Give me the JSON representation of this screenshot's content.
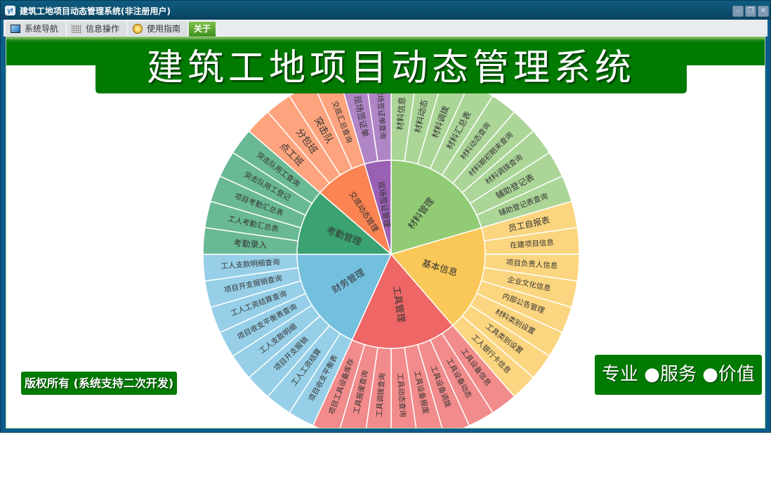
{
  "window": {
    "title": "建筑工地项目动态管理系统(非注册用户)",
    "logo_text": "yf",
    "controls": [
      "minimize-icon",
      "restore-icon",
      "close-icon"
    ]
  },
  "toolbar": {
    "tabs": [
      {
        "label": "系统导航",
        "icon": "monitor-icon"
      },
      {
        "label": "信息操作",
        "icon": "grid-icon"
      },
      {
        "label": "使用指南",
        "icon": "help-icon"
      },
      {
        "label": "关于",
        "active": true
      }
    ]
  },
  "main": {
    "banner_title": "建筑工地项目动态管理系统",
    "copyright": "版权所有 (系统支持二次开发)",
    "slogan": "专业 ●服务 ●价值"
  },
  "colors": {
    "accent_green": "#007a00",
    "titlebar": "#0a4a68"
  },
  "chart_data": {
    "type": "sunburst",
    "children": [
      {
        "name": "材料管理",
        "color": "#91cc75",
        "leaf_color": "#acd598",
        "children": [
          "材料信息",
          "材料动态",
          "材料调拨",
          "材料汇总表",
          "材料动态查询",
          "材料期初期末查询",
          "材料调拨查询",
          "辅助登记表",
          "辅助登记表查询"
        ]
      },
      {
        "name": "基本信息",
        "color": "#fac858",
        "leaf_color": "#fbd57f",
        "children": [
          "员工自报表",
          "在建项目信息",
          "项目负责人信息",
          "企业文化信息",
          "内部公告管理",
          "材料类别设置",
          "工具类别设置",
          "工人银行卡信息"
        ]
      },
      {
        "name": "工具管理",
        "color": "#ee6666",
        "leaf_color": "#f28b8b",
        "children": [
          "工具设备信息",
          "工具设备动态",
          "工具设备调拨",
          "工具设备报废",
          "工具动态查询",
          "工具调拨查询",
          "工具报废查询",
          "项目工具设备库存"
        ]
      },
      {
        "name": "财务管理",
        "color": "#73bfde",
        "leaf_color": "#96cfe7",
        "children": [
          "项目收支平衡表",
          "工人工资结算",
          "项目开支报销",
          "工人支款明细",
          "项目收支平衡表查询",
          "工人工资结算查询",
          "项目开支报销查询",
          "工人支款明细查询"
        ]
      },
      {
        "name": "考勤管理",
        "color": "#3ba272",
        "leaf_color": "#69b994",
        "children": [
          "考勤录入",
          "工人考勤汇总表",
          "项目考勤汇总表",
          "突击队用工登记",
          "突击队用工查询"
        ]
      },
      {
        "name": "交底动态管理",
        "color": "#fc8452",
        "leaf_color": "#fda37d",
        "children": [
          "点工班",
          "分包班",
          "突击队",
          "交底汇总查询"
        ]
      },
      {
        "name": "现场签证管理",
        "color": "#9a60b4",
        "leaf_color": "#b085c6",
        "children": [
          "现场签证单",
          "现场签证单查询"
        ]
      }
    ]
  }
}
